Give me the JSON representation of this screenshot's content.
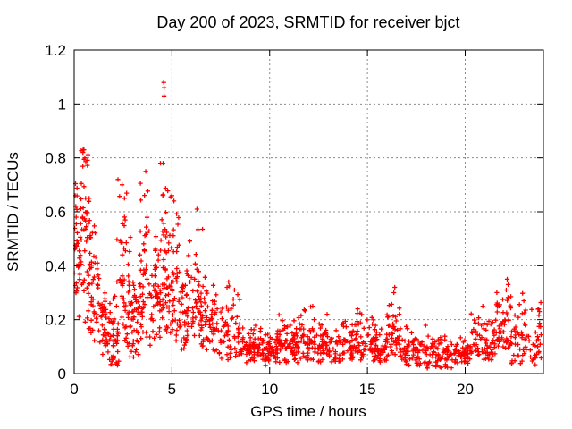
{
  "window": {
    "background": "#ffffff",
    "description": "gnuplot-style scatter plot, no legend, dashed grey grid, black frame with inward mirrored ticks"
  },
  "chart_data": {
    "type": "scatter",
    "title": "Day 200 of 2023, SRMTID for receiver bjct",
    "xlabel": "GPS time / hours",
    "ylabel": "SRMTID / TECUs",
    "xlim": [
      0,
      24
    ],
    "ylim": [
      0,
      1.2
    ],
    "xticks": [
      {
        "value": 0,
        "label": "0"
      },
      {
        "value": 5,
        "label": "5"
      },
      {
        "value": 10,
        "label": "10"
      },
      {
        "value": 15,
        "label": "15"
      },
      {
        "value": 20,
        "label": "20"
      }
    ],
    "yticks": [
      {
        "value": 0,
        "label": "0"
      },
      {
        "value": 0.2,
        "label": "0.2"
      },
      {
        "value": 0.4,
        "label": "0.4"
      },
      {
        "value": 0.6,
        "label": "0.6"
      },
      {
        "value": 0.8,
        "label": "0.8"
      },
      {
        "value": 1,
        "label": "1"
      },
      {
        "value": 1.2,
        "label": "1.2"
      }
    ],
    "grid": true,
    "legend": "none",
    "series": [
      {
        "name": "SRMTID",
        "marker": "plus",
        "color": "#ff0000",
        "peak_points": [
          [
            0.05,
            0.66
          ],
          [
            0.08,
            0.62
          ],
          [
            0.1,
            0.58
          ],
          [
            0.45,
            0.82
          ],
          [
            0.5,
            0.83
          ],
          [
            0.55,
            0.8
          ],
          [
            2.24,
            0.72
          ],
          [
            2.45,
            0.7
          ],
          [
            3.66,
            0.75
          ],
          [
            4.55,
            0.78
          ],
          [
            4.58,
            1.08
          ],
          [
            4.6,
            1.06
          ],
          [
            4.6,
            1.03
          ],
          [
            5.0,
            0.66
          ],
          [
            5.1,
            0.64
          ],
          [
            6.28,
            0.61
          ],
          [
            7.9,
            0.34
          ],
          [
            8.2,
            0.31
          ],
          [
            12.2,
            0.25
          ],
          [
            14.5,
            0.24
          ],
          [
            16.35,
            0.3
          ],
          [
            16.4,
            0.32
          ],
          [
            20.9,
            0.25
          ],
          [
            22.1,
            0.31
          ],
          [
            22.15,
            0.35
          ],
          [
            22.2,
            0.33
          ],
          [
            23.0,
            0.27
          ],
          [
            23.8,
            0.23
          ]
        ],
        "density_bins": [
          {
            "x0": 0.0,
            "x1": 0.3,
            "ymin": 0.18,
            "ymax": 0.71,
            "mode": 0.48,
            "n": 30
          },
          {
            "x0": 0.3,
            "x1": 0.8,
            "ymin": 0.15,
            "ymax": 0.83,
            "mode": 0.52,
            "n": 55
          },
          {
            "x0": 0.8,
            "x1": 1.3,
            "ymin": 0.12,
            "ymax": 0.56,
            "mode": 0.32,
            "n": 40
          },
          {
            "x0": 1.3,
            "x1": 1.8,
            "ymin": 0.07,
            "ymax": 0.35,
            "mode": 0.18,
            "n": 40
          },
          {
            "x0": 1.8,
            "x1": 2.3,
            "ymin": 0.03,
            "ymax": 0.5,
            "mode": 0.14,
            "n": 45
          },
          {
            "x0": 2.3,
            "x1": 2.8,
            "ymin": 0.1,
            "ymax": 0.72,
            "mode": 0.33,
            "n": 45
          },
          {
            "x0": 2.8,
            "x1": 3.3,
            "ymin": 0.06,
            "ymax": 0.55,
            "mode": 0.22,
            "n": 45
          },
          {
            "x0": 3.3,
            "x1": 3.9,
            "ymin": 0.1,
            "ymax": 0.75,
            "mode": 0.35,
            "n": 50
          },
          {
            "x0": 3.9,
            "x1": 4.4,
            "ymin": 0.12,
            "ymax": 0.55,
            "mode": 0.3,
            "n": 45
          },
          {
            "x0": 4.4,
            "x1": 4.9,
            "ymin": 0.15,
            "ymax": 0.78,
            "mode": 0.38,
            "n": 50
          },
          {
            "x0": 4.9,
            "x1": 5.4,
            "ymin": 0.12,
            "ymax": 0.66,
            "mode": 0.32,
            "n": 45
          },
          {
            "x0": 5.4,
            "x1": 6.1,
            "ymin": 0.08,
            "ymax": 0.5,
            "mode": 0.24,
            "n": 50
          },
          {
            "x0": 6.1,
            "x1": 6.6,
            "ymin": 0.1,
            "ymax": 0.61,
            "mode": 0.28,
            "n": 40
          },
          {
            "x0": 6.6,
            "x1": 7.3,
            "ymin": 0.08,
            "ymax": 0.4,
            "mode": 0.2,
            "n": 45
          },
          {
            "x0": 7.3,
            "x1": 8.5,
            "ymin": 0.05,
            "ymax": 0.34,
            "mode": 0.16,
            "n": 60
          },
          {
            "x0": 8.5,
            "x1": 9.6,
            "ymin": 0.04,
            "ymax": 0.2,
            "mode": 0.1,
            "n": 70
          },
          {
            "x0": 9.6,
            "x1": 10.4,
            "ymin": 0.03,
            "ymax": 0.17,
            "mode": 0.08,
            "n": 55
          },
          {
            "x0": 10.4,
            "x1": 11.3,
            "ymin": 0.04,
            "ymax": 0.22,
            "mode": 0.11,
            "n": 60
          },
          {
            "x0": 11.3,
            "x1": 12.5,
            "ymin": 0.04,
            "ymax": 0.25,
            "mode": 0.12,
            "n": 70
          },
          {
            "x0": 12.5,
            "x1": 13.6,
            "ymin": 0.04,
            "ymax": 0.22,
            "mode": 0.1,
            "n": 65
          },
          {
            "x0": 13.6,
            "x1": 14.8,
            "ymin": 0.05,
            "ymax": 0.25,
            "mode": 0.12,
            "n": 70
          },
          {
            "x0": 14.8,
            "x1": 16.0,
            "ymin": 0.04,
            "ymax": 0.23,
            "mode": 0.11,
            "n": 70
          },
          {
            "x0": 16.0,
            "x1": 16.7,
            "ymin": 0.06,
            "ymax": 0.32,
            "mode": 0.14,
            "n": 45
          },
          {
            "x0": 16.7,
            "x1": 18.0,
            "ymin": 0.03,
            "ymax": 0.18,
            "mode": 0.09,
            "n": 70
          },
          {
            "x0": 18.0,
            "x1": 19.5,
            "ymin": 0.02,
            "ymax": 0.16,
            "mode": 0.07,
            "n": 75
          },
          {
            "x0": 19.5,
            "x1": 20.3,
            "ymin": 0.03,
            "ymax": 0.14,
            "mode": 0.08,
            "n": 50
          },
          {
            "x0": 20.3,
            "x1": 21.6,
            "ymin": 0.05,
            "ymax": 0.25,
            "mode": 0.12,
            "n": 70
          },
          {
            "x0": 21.6,
            "x1": 22.35,
            "ymin": 0.07,
            "ymax": 0.35,
            "mode": 0.16,
            "n": 50
          },
          {
            "x0": 22.35,
            "x1": 23.9,
            "ymin": 0.03,
            "ymax": 0.3,
            "mode": 0.13,
            "n": 75
          }
        ]
      }
    ]
  },
  "style": {
    "marker_color": "#ff0000",
    "grid_color": "#8c8c8c",
    "frame_color": "#000000",
    "text_color": "#000000"
  }
}
